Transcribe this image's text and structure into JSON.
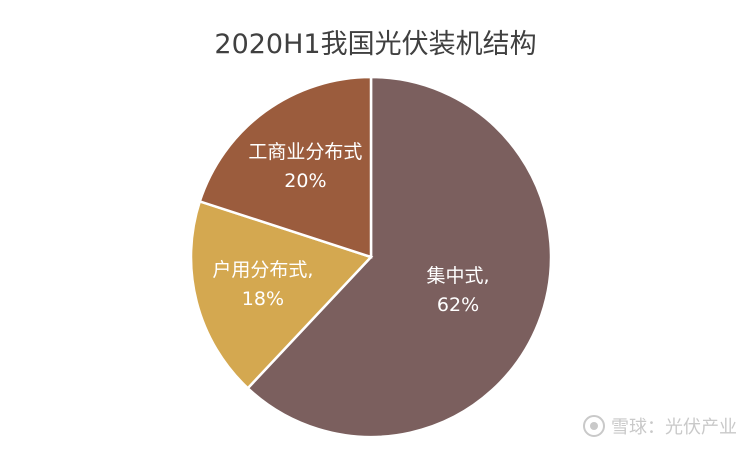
{
  "chart_data": {
    "type": "pie",
    "title": "2020H1我国光伏装机结构",
    "slices": [
      {
        "name": "集中式",
        "value": 62,
        "label": "集中式,",
        "value_label": "62%",
        "color": "#7b5f5e"
      },
      {
        "name": "户用分布式",
        "value": 18,
        "label": "户用分布式,",
        "value_label": "18%",
        "color": "#d4a850"
      },
      {
        "name": "工商业分布式",
        "value": 20,
        "label": "工商业分布式",
        "value_label": "20%",
        "color": "#9b5c3d"
      }
    ],
    "start_angle_deg": 0,
    "direction": "clockwise",
    "legend": "none"
  },
  "watermark": {
    "icon": "snowball-logo-icon",
    "text": "雪球：光伏产业"
  }
}
